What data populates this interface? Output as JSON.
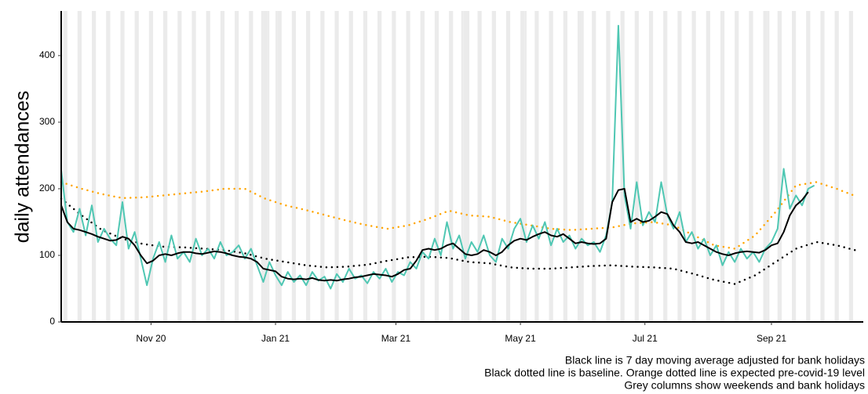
{
  "chart_data": {
    "type": "line",
    "y_label": "daily attendances",
    "notes": [
      "Black line is 7 day moving average adjusted for bank holidays",
      "Black dotted line is baseline. Orange dotted line is expected pre-covid-19 level",
      "Grey columns show weekends and bank holidays"
    ],
    "xlim": [
      0,
      393
    ],
    "xticks": [
      {
        "value": 44,
        "label": "Nov 20"
      },
      {
        "value": 105,
        "label": "Jan 21"
      },
      {
        "value": 164,
        "label": "Mar 21"
      },
      {
        "value": 225,
        "label": "May 21"
      },
      {
        "value": 286,
        "label": "Jul 21"
      },
      {
        "value": 348,
        "label": "Sep 21"
      }
    ],
    "ylim": [
      0,
      467
    ],
    "yticks": [
      0,
      100,
      200,
      300,
      400
    ],
    "grey_color": "#ebebeb",
    "grey_columns": [
      [
        1,
        3
      ],
      [
        8,
        10
      ],
      [
        15,
        17
      ],
      [
        22,
        24
      ],
      [
        29,
        31
      ],
      [
        36,
        38
      ],
      [
        43,
        45
      ],
      [
        50,
        52
      ],
      [
        57,
        59
      ],
      [
        64,
        66
      ],
      [
        71,
        73
      ],
      [
        78,
        80
      ],
      [
        85,
        87
      ],
      [
        92,
        94
      ],
      [
        99,
        101
      ],
      [
        106,
        108
      ],
      [
        113,
        115
      ],
      [
        120,
        122
      ],
      [
        127,
        129
      ],
      [
        134,
        136
      ],
      [
        141,
        143
      ],
      [
        148,
        150
      ],
      [
        155,
        157
      ],
      [
        162,
        164
      ],
      [
        169,
        171
      ],
      [
        176,
        178
      ],
      [
        183,
        185
      ],
      [
        190,
        192
      ],
      [
        197,
        199
      ],
      [
        204,
        206
      ],
      [
        211,
        213
      ],
      [
        218,
        220
      ],
      [
        225,
        227
      ],
      [
        232,
        234
      ],
      [
        239,
        241
      ],
      [
        246,
        248
      ],
      [
        253,
        255
      ],
      [
        260,
        262
      ],
      [
        267,
        269
      ],
      [
        274,
        276
      ],
      [
        281,
        283
      ],
      [
        288,
        290
      ],
      [
        295,
        297
      ],
      [
        302,
        304
      ],
      [
        309,
        311
      ],
      [
        316,
        318
      ],
      [
        323,
        325
      ],
      [
        330,
        332
      ],
      [
        337,
        339
      ],
      [
        344,
        346
      ],
      [
        351,
        353
      ],
      [
        358,
        360
      ],
      [
        365,
        367
      ],
      [
        372,
        374
      ],
      [
        379,
        381
      ],
      [
        386,
        388
      ],
      [
        98,
        99
      ],
      [
        101,
        102
      ],
      [
        105,
        106
      ],
      [
        196,
        197
      ],
      [
        199,
        200
      ],
      [
        227,
        228
      ],
      [
        255,
        256
      ],
      [
        346,
        347
      ]
    ],
    "series": [
      {
        "color": "#ffa500",
        "dotted": true,
        "x": [
          0,
          10,
          20,
          30,
          40,
          50,
          60,
          70,
          80,
          90,
          100,
          110,
          120,
          130,
          140,
          150,
          160,
          170,
          180,
          190,
          200,
          210,
          220,
          230,
          240,
          250,
          260,
          270,
          280,
          290,
          300,
          310,
          320,
          330,
          340,
          350,
          360,
          370,
          380,
          390
        ],
        "values": [
          210,
          200,
          192,
          186,
          187,
          190,
          193,
          196,
          200,
          200,
          185,
          175,
          168,
          160,
          152,
          145,
          140,
          145,
          155,
          167,
          160,
          158,
          150,
          145,
          140,
          138,
          140,
          142,
          148,
          150,
          145,
          130,
          115,
          110,
          130,
          165,
          205,
          210,
          200,
          188
        ]
      },
      {
        "color": "#000000",
        "dotted": true,
        "x": [
          0,
          10,
          20,
          30,
          40,
          50,
          60,
          70,
          80,
          90,
          100,
          110,
          120,
          130,
          140,
          150,
          160,
          170,
          180,
          190,
          200,
          210,
          220,
          230,
          240,
          250,
          260,
          270,
          280,
          290,
          300,
          310,
          320,
          330,
          340,
          350,
          360,
          370,
          380,
          390
        ],
        "values": [
          185,
          160,
          138,
          125,
          117,
          113,
          112,
          110,
          108,
          103,
          95,
          90,
          85,
          82,
          83,
          86,
          92,
          97,
          98,
          96,
          90,
          88,
          82,
          80,
          80,
          82,
          84,
          85,
          83,
          82,
          80,
          72,
          63,
          57,
          70,
          90,
          110,
          120,
          115,
          107
        ]
      },
      {
        "color": "#4fc7b3",
        "dotted": false,
        "x": [
          0,
          3,
          6,
          9,
          12,
          15,
          18,
          21,
          24,
          27,
          30,
          33,
          36,
          39,
          42,
          45,
          48,
          51,
          54,
          57,
          60,
          63,
          66,
          69,
          72,
          75,
          78,
          81,
          84,
          87,
          90,
          93,
          96,
          99,
          102,
          105,
          108,
          111,
          114,
          117,
          120,
          123,
          126,
          129,
          132,
          135,
          138,
          141,
          144,
          147,
          150,
          153,
          156,
          159,
          162,
          165,
          168,
          171,
          174,
          177,
          180,
          183,
          186,
          189,
          192,
          195,
          198,
          201,
          204,
          207,
          210,
          213,
          216,
          219,
          222,
          225,
          228,
          231,
          234,
          237,
          240,
          243,
          246,
          249,
          252,
          255,
          258,
          261,
          264,
          267,
          270,
          273,
          276,
          279,
          282,
          285,
          288,
          291,
          294,
          297,
          300,
          303,
          306,
          309,
          312,
          315,
          318,
          321,
          324,
          327,
          330,
          333,
          336,
          339,
          342,
          345,
          348,
          351,
          354,
          357,
          360,
          363,
          366,
          369
        ],
        "values": [
          228,
          150,
          135,
          170,
          130,
          175,
          120,
          140,
          125,
          115,
          180,
          110,
          135,
          95,
          55,
          95,
          120,
          90,
          130,
          95,
          105,
          90,
          125,
          100,
          110,
          95,
          120,
          100,
          105,
          115,
          95,
          110,
          85,
          60,
          90,
          70,
          55,
          75,
          60,
          70,
          55,
          75,
          62,
          68,
          50,
          72,
          60,
          80,
          65,
          70,
          58,
          75,
          65,
          80,
          60,
          75,
          70,
          90,
          80,
          105,
          95,
          125,
          100,
          150,
          110,
          130,
          95,
          120,
          105,
          130,
          100,
          90,
          125,
          110,
          140,
          155,
          120,
          145,
          125,
          150,
          115,
          140,
          120,
          130,
          110,
          125,
          115,
          120,
          105,
          130,
          180,
          445,
          190,
          140,
          210,
          145,
          165,
          150,
          210,
          160,
          140,
          165,
          120,
          135,
          110,
          125,
          100,
          115,
          85,
          105,
          90,
          110,
          95,
          105,
          90,
          110,
          120,
          140,
          230,
          170,
          190,
          175,
          200,
          205
        ]
      },
      {
        "color": "#000000",
        "dotted": false,
        "x": [
          0,
          3,
          6,
          9,
          12,
          15,
          18,
          21,
          24,
          27,
          30,
          33,
          36,
          39,
          42,
          45,
          48,
          51,
          54,
          57,
          60,
          63,
          66,
          69,
          72,
          75,
          78,
          81,
          84,
          87,
          90,
          93,
          96,
          99,
          102,
          105,
          108,
          111,
          114,
          117,
          120,
          123,
          126,
          129,
          132,
          135,
          138,
          141,
          144,
          147,
          150,
          153,
          156,
          159,
          162,
          165,
          168,
          171,
          174,
          177,
          180,
          183,
          186,
          189,
          192,
          195,
          198,
          201,
          204,
          207,
          210,
          213,
          216,
          219,
          222,
          225,
          228,
          231,
          234,
          237,
          240,
          243,
          246,
          249,
          252,
          255,
          258,
          261,
          264,
          267,
          270,
          273,
          276,
          279,
          282,
          285,
          288,
          291,
          294,
          297,
          300,
          303,
          306,
          309,
          312,
          315,
          318,
          321,
          324,
          327,
          330,
          333,
          336,
          339,
          342,
          345,
          348,
          351,
          354,
          357,
          360,
          363,
          366,
          369
        ],
        "values": [
          175,
          150,
          140,
          138,
          135,
          132,
          128,
          125,
          122,
          123,
          128,
          125,
          115,
          100,
          88,
          92,
          100,
          102,
          100,
          103,
          105,
          105,
          103,
          102,
          104,
          106,
          105,
          103,
          100,
          98,
          97,
          95,
          90,
          80,
          78,
          76,
          68,
          65,
          64,
          65,
          64,
          66,
          63,
          62,
          63,
          62,
          64,
          65,
          67,
          68,
          70,
          72,
          71,
          70,
          68,
          72,
          78,
          80,
          92,
          108,
          110,
          108,
          110,
          115,
          118,
          110,
          102,
          100,
          102,
          108,
          105,
          100,
          105,
          115,
          122,
          125,
          123,
          128,
          132,
          135,
          130,
          128,
          132,
          125,
          118,
          120,
          118,
          117,
          118,
          125,
          180,
          198,
          200,
          150,
          155,
          150,
          152,
          158,
          165,
          162,
          145,
          135,
          120,
          118,
          120,
          115,
          110,
          105,
          102,
          100,
          103,
          105,
          106,
          105,
          104,
          108,
          115,
          118,
          135,
          160,
          175,
          183,
          195,
          null
        ]
      }
    ]
  }
}
